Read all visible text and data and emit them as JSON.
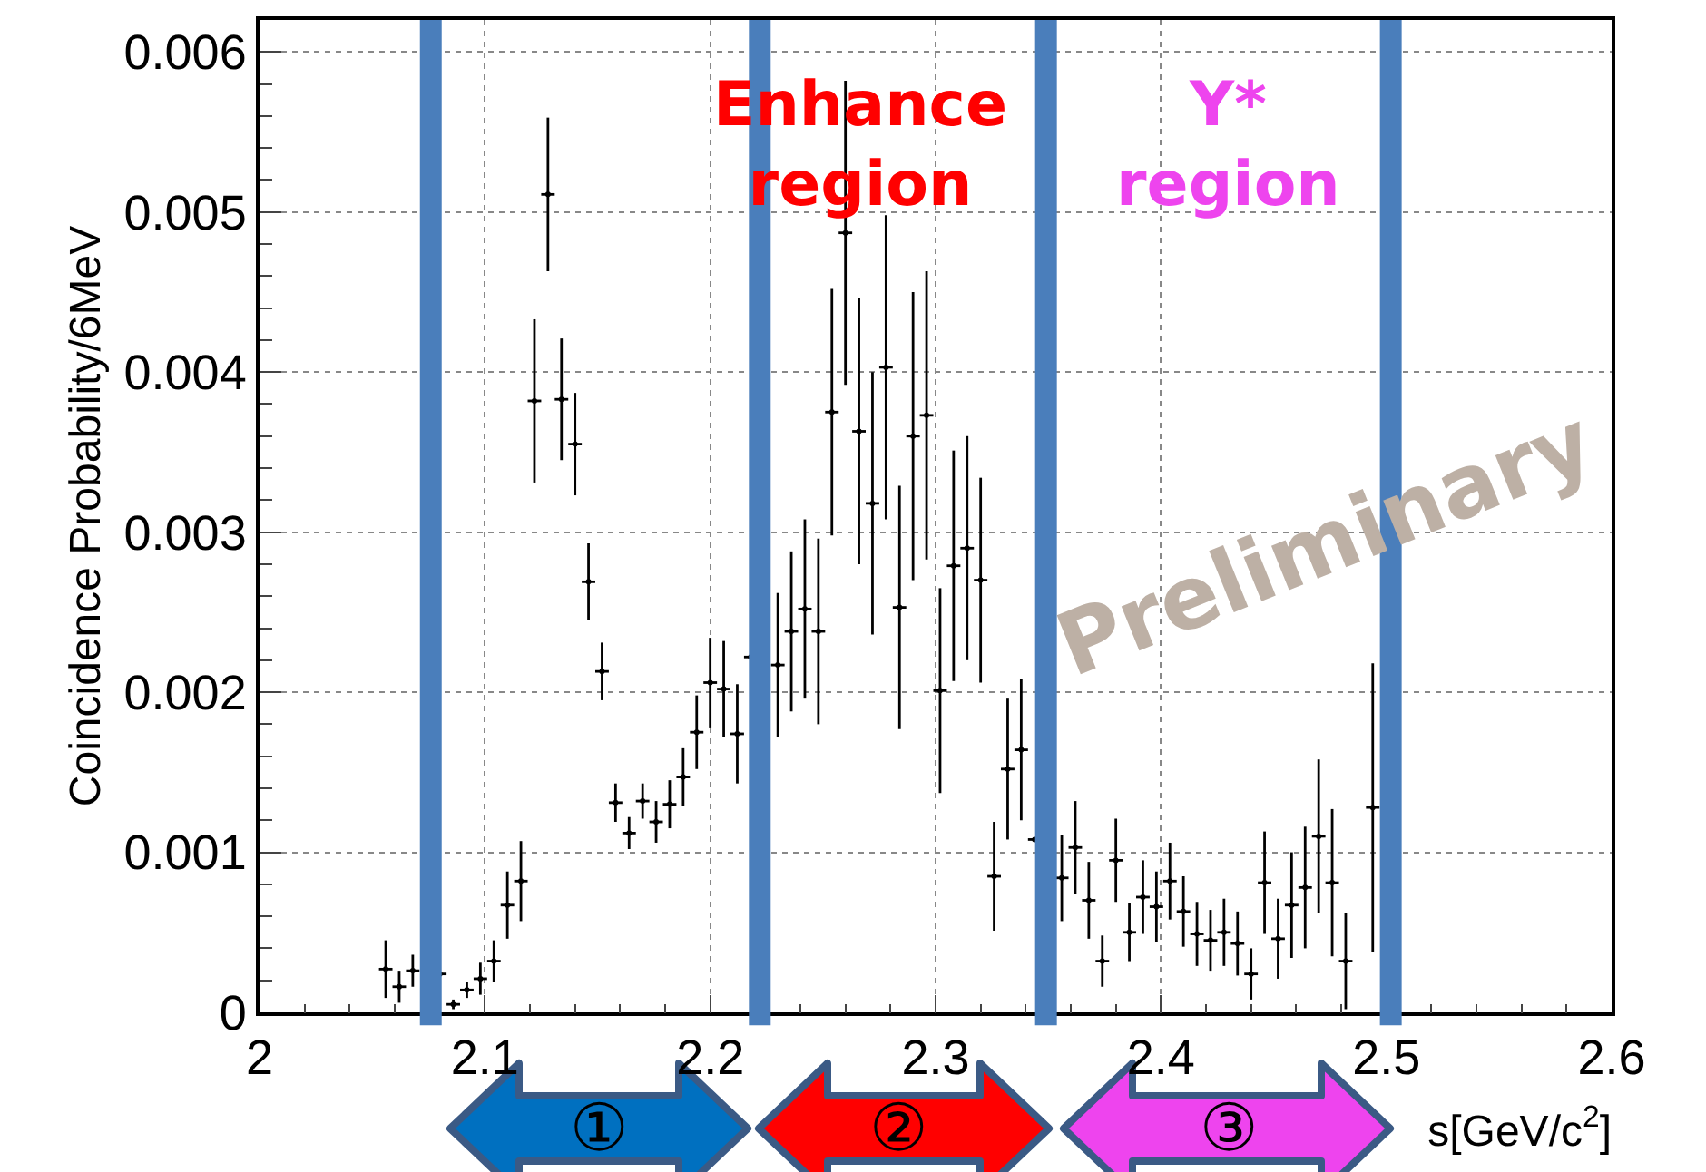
{
  "chart_data": {
    "type": "scatter",
    "ylabel": "Coincidence Probability/6MeV",
    "xlabel": "s[GeV/c$^{2}$]",
    "x": [
      2.056,
      2.062,
      2.068,
      2.08,
      2.086,
      2.092,
      2.098,
      2.104,
      2.11,
      2.116,
      2.122,
      2.128,
      2.134,
      2.14,
      2.146,
      2.152,
      2.158,
      2.164,
      2.17,
      2.176,
      2.182,
      2.188,
      2.194,
      2.2,
      2.206,
      2.212,
      2.218,
      2.23,
      2.236,
      2.242,
      2.248,
      2.254,
      2.26,
      2.266,
      2.272,
      2.278,
      2.284,
      2.29,
      2.296,
      2.302,
      2.308,
      2.314,
      2.32,
      2.326,
      2.332,
      2.338,
      2.344,
      2.356,
      2.362,
      2.368,
      2.374,
      2.38,
      2.386,
      2.392,
      2.398,
      2.404,
      2.41,
      2.416,
      2.422,
      2.428,
      2.434,
      2.44,
      2.446,
      2.452,
      2.458,
      2.464,
      2.47,
      2.476,
      2.482,
      2.494
    ],
    "series": [
      {
        "color": "#000000",
        "values": [
          0.00027,
          0.00016,
          0.00026,
          0.00024,
          5e-05,
          0.00014,
          0.00021,
          0.00032,
          0.00067,
          0.00082,
          0.00382,
          0.00511,
          0.00383,
          0.00355,
          0.00269,
          0.00213,
          0.00131,
          0.00112,
          0.00132,
          0.00119,
          0.0013,
          0.00147,
          0.00175,
          0.00206,
          0.00202,
          0.00174,
          0.00222,
          0.00217,
          0.00238,
          0.00252,
          0.00238,
          0.00375,
          0.00487,
          0.00363,
          0.00318,
          0.00403,
          0.00253,
          0.0036,
          0.00373,
          0.00201,
          0.00279,
          0.0029,
          0.0027,
          0.00085,
          0.00152,
          0.00164,
          0.00108,
          0.00084,
          0.00103,
          0.0007,
          0.00032,
          0.00095,
          0.0005,
          0.00072,
          0.00066,
          0.00082,
          0.00063,
          0.00049,
          0.00045,
          0.0005,
          0.00043,
          0.00024,
          0.00081,
          0.00046,
          0.00067,
          0.00078,
          0.0011,
          0.00081,
          0.00032,
          0.00128
        ],
        "errors": [
          0.00018,
          0.0001,
          0.0001,
          null,
          3e-05,
          5e-05,
          0.0001,
          0.00013,
          0.00021,
          0.00025,
          0.00051,
          0.00048,
          0.00038,
          0.00032,
          0.00024,
          0.00018,
          0.00012,
          0.0001,
          0.00011,
          0.00013,
          0.00015,
          0.00018,
          0.00023,
          0.00028,
          0.0003,
          0.00031,
          null,
          0.00045,
          0.0005,
          0.00056,
          0.00058,
          0.00077,
          0.00095,
          0.00083,
          0.00082,
          0.00095,
          0.00076,
          0.0009,
          0.0009,
          0.00064,
          0.00072,
          0.0007,
          0.00064,
          0.00034,
          0.00044,
          0.00044,
          null,
          0.00027,
          0.00029,
          0.00024,
          0.00016,
          0.00026,
          0.00018,
          0.00023,
          0.00022,
          0.00024,
          0.00022,
          0.0002,
          0.00019,
          0.00021,
          0.0002,
          0.00016,
          0.00032,
          0.00025,
          0.00033,
          0.00038,
          0.00048,
          0.00046,
          0.0003,
          0.0009
        ],
        "xerrors": [
          0.003,
          0.003,
          0.003,
          0.003,
          0.003,
          0.003,
          0.003,
          0.003,
          0.003,
          0.003,
          0.003,
          0.003,
          0.003,
          0.003,
          0.003,
          0.003,
          0.003,
          0.003,
          0.003,
          0.003,
          0.003,
          0.003,
          0.003,
          0.003,
          0.003,
          0.003,
          0.003,
          0.003,
          0.003,
          0.003,
          0.003,
          0.003,
          0.003,
          0.003,
          0.003,
          0.003,
          0.003,
          0.003,
          0.003,
          0.003,
          0.003,
          0.003,
          0.003,
          0.003,
          0.003,
          0.003,
          0.003,
          0.003,
          0.003,
          0.003,
          0.003,
          0.003,
          0.003,
          0.003,
          0.003,
          0.003,
          0.003,
          0.003,
          0.003,
          0.003,
          0.003,
          0.003,
          0.003,
          0.003,
          0.003,
          0.003,
          0.003,
          0.003,
          0.003,
          0.003
        ]
      }
    ],
    "grid": true,
    "xlim": [
      2,
      2.6
    ],
    "xticks": [
      2,
      2.1,
      2.2,
      2.3,
      2.4,
      2.5,
      2.6
    ],
    "ylim": [
      0,
      0.0062
    ],
    "yticks": [
      0,
      0.001,
      0.002,
      0.003,
      0.004,
      0.005,
      0.006
    ],
    "ref_lines": [
      {
        "axis": "x",
        "value": 2.076,
        "color": "#4a7ebb"
      },
      {
        "axis": "x",
        "value": 2.222,
        "color": "#4a7ebb"
      },
      {
        "axis": "x",
        "value": 2.349,
        "color": "#4a7ebb"
      },
      {
        "axis": "x",
        "value": 2.502,
        "color": "#4a7ebb"
      }
    ],
    "annotations": [
      "Enhance\nregion",
      "Y*\nregion",
      "Preliminary",
      "①",
      "②",
      "③"
    ]
  }
}
